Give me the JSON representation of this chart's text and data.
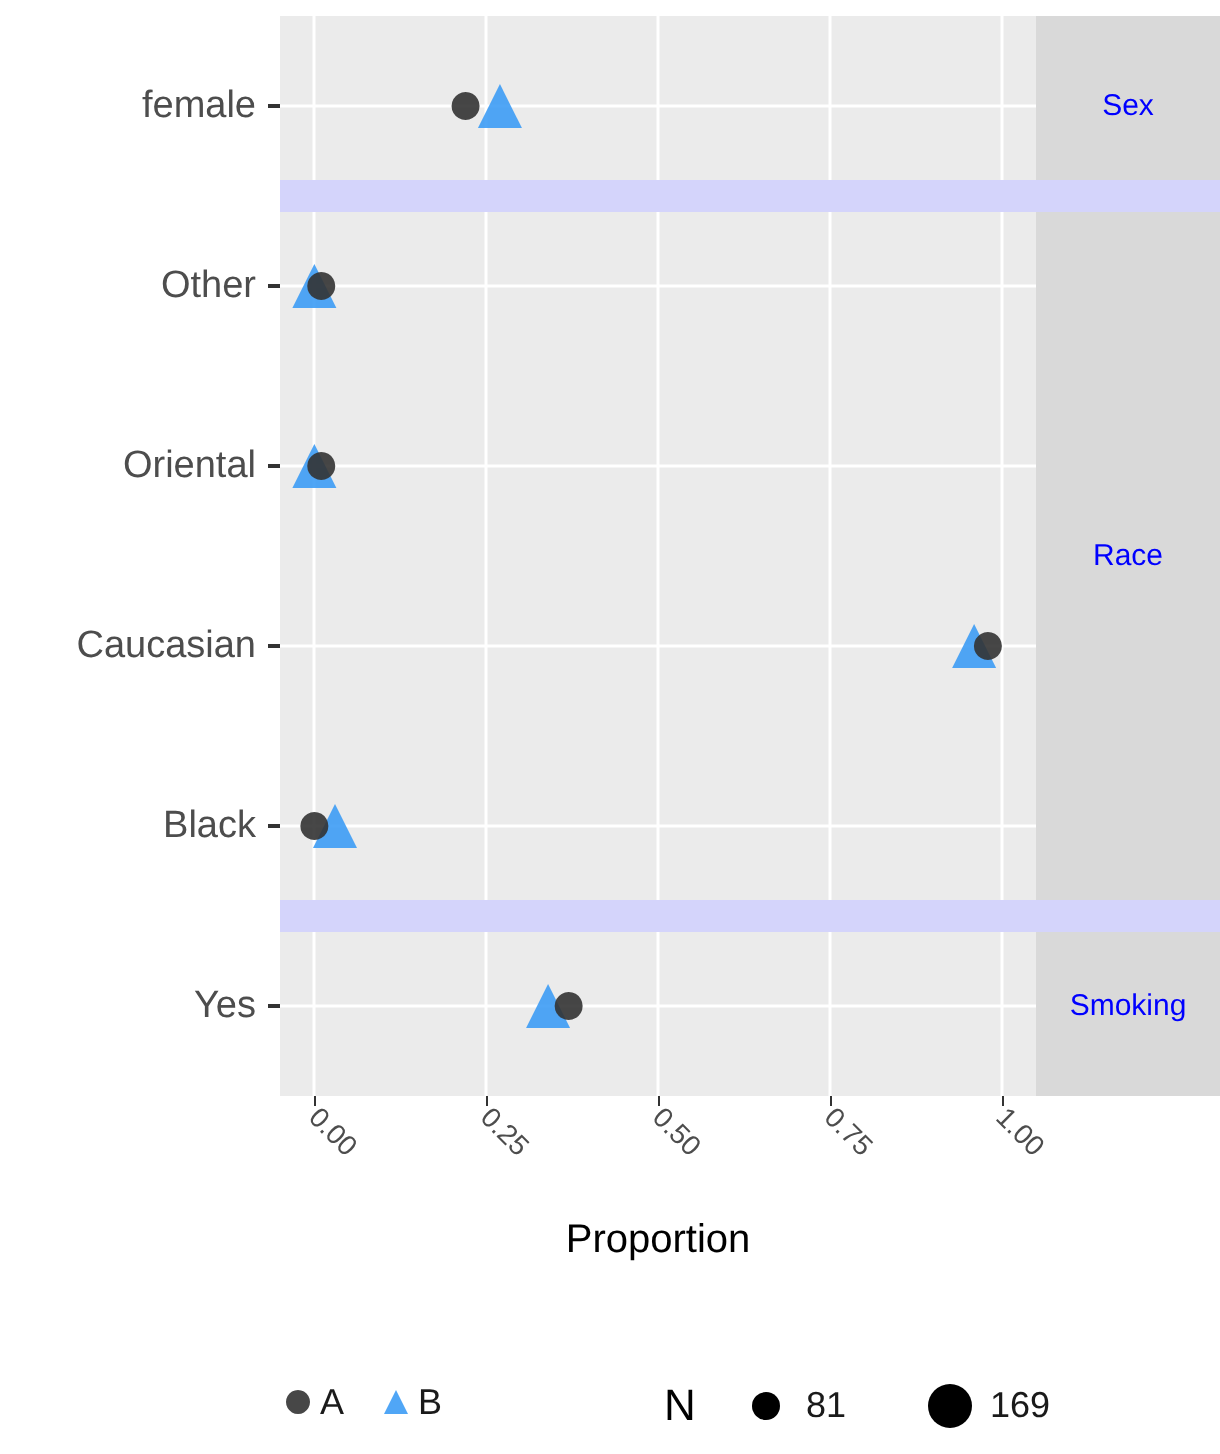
{
  "chart_data": {
    "type": "scatter",
    "categories": [
      "female",
      "Other",
      "Oriental",
      "Caucasian",
      "Black",
      "Yes"
    ],
    "xlabel": "Proportion",
    "grid": true,
    "orientation": "horizontal",
    "legend": "bottom",
    "annotations": [
      "Sex",
      "Race",
      "Smoking",
      "N",
      "81",
      "169"
    ],
    "xlim": [
      -0.05,
      1.05
    ],
    "xticks": [
      {
        "value": 0,
        "label": "0.00"
      },
      {
        "value": 0.25,
        "label": "0.25"
      },
      {
        "value": 0.5,
        "label": "0.50"
      },
      {
        "value": 0.75,
        "label": "0.75"
      },
      {
        "value": 1,
        "label": "1.00"
      }
    ],
    "series": [
      {
        "name": "A",
        "color": "#333333",
        "marker": "circle",
        "values": [
          0.22,
          0.01,
          0.01,
          0.98,
          0.0,
          0.37
        ]
      },
      {
        "name": "B",
        "color": "#3d9cf5",
        "marker": "triangle",
        "values": [
          0.27,
          0.0,
          0.0,
          0.96,
          0.03,
          0.34
        ]
      }
    ]
  }
}
